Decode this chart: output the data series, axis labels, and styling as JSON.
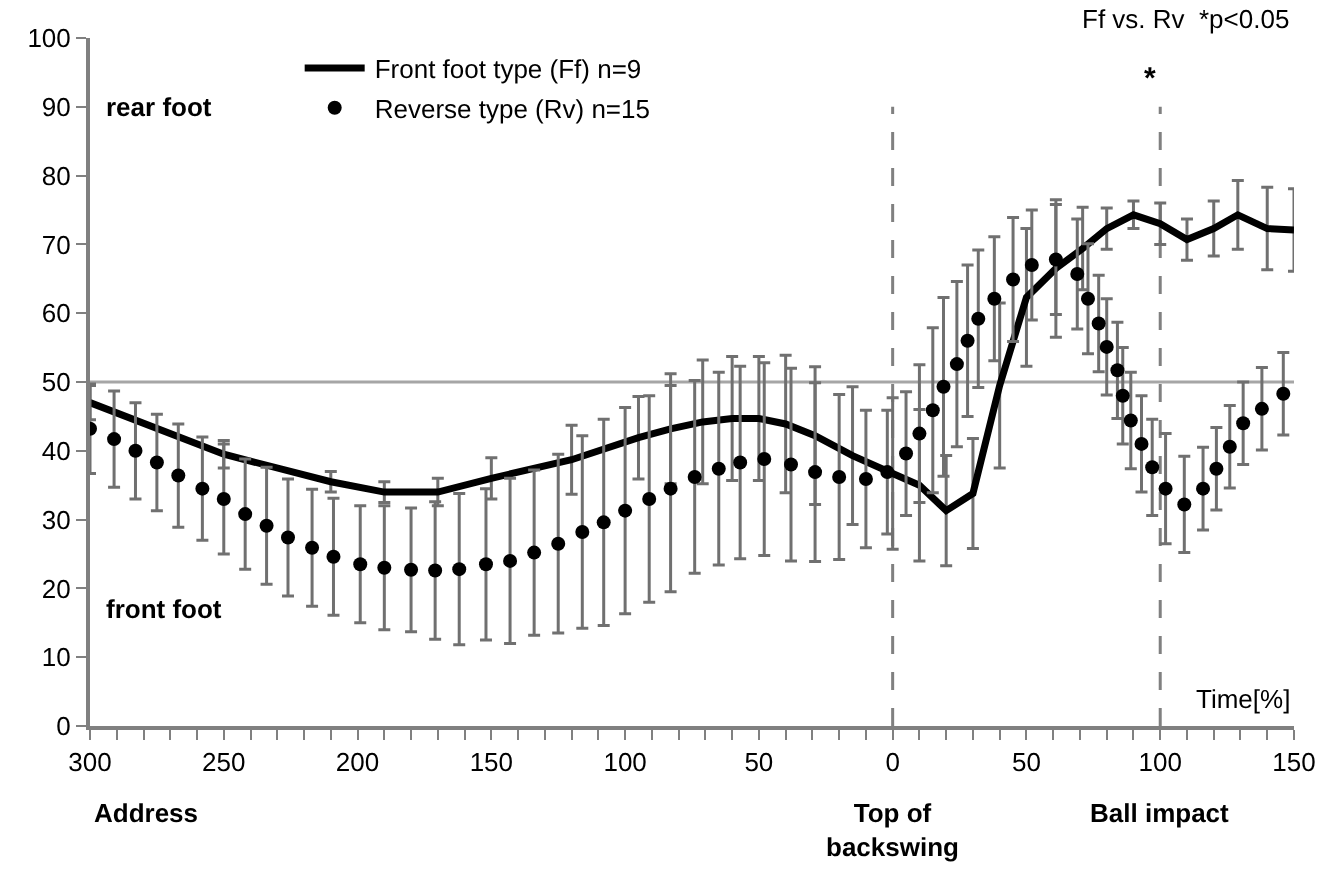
{
  "chart_data": {
    "type": "line",
    "xlim": [
      -300,
      150
    ],
    "ylim": [
      0,
      100
    ],
    "xticks": [
      {
        "value": -300,
        "label": "300"
      },
      {
        "value": -250,
        "label": "250"
      },
      {
        "value": -200,
        "label": "200"
      },
      {
        "value": -150,
        "label": "150"
      },
      {
        "value": -100,
        "label": "100"
      },
      {
        "value": -50,
        "label": "50"
      },
      0,
      50,
      100,
      150
    ],
    "yticks": [
      0,
      10,
      20,
      30,
      40,
      50,
      60,
      70,
      80,
      90,
      100
    ],
    "grid": false,
    "legend": "top left",
    "series": [
      {
        "name": "Front foot type (Ff) n=9",
        "color": "#000000",
        "marker": "none",
        "line_style": "solid",
        "x": [
          -300,
          -250,
          -210,
          -190,
          -170,
          -150,
          -120,
          -95,
          -83,
          -71,
          -60,
          -50,
          -40,
          -29,
          -15,
          0,
          10,
          20,
          30,
          40,
          50,
          61,
          71,
          80,
          90,
          100,
          110,
          120,
          129,
          140,
          150
        ],
        "values": [
          47,
          39.5,
          35.5,
          34,
          34,
          36,
          38.7,
          41.9,
          43.2,
          44.2,
          44.7,
          44.7,
          43.9,
          42.2,
          39.3,
          36.7,
          35,
          31.3,
          33.8,
          49.5,
          62.3,
          66.5,
          69.4,
          72.3,
          74.3,
          73,
          70.7,
          72.3,
          74.3,
          72.3,
          72.1
        ],
        "errors": [
          2.5,
          2,
          1.5,
          1.5,
          2,
          3,
          5,
          6,
          8,
          9,
          9,
          9,
          10,
          10,
          10,
          11,
          11,
          8,
          8,
          12,
          10,
          10,
          6,
          3,
          2,
          3,
          3,
          4,
          5,
          6,
          6
        ]
      },
      {
        "name": "Reverse type (Rv) n=15",
        "color": "#000000",
        "type": "scatter",
        "marker": "circle",
        "x": [
          -300,
          -291,
          -283,
          -275,
          -267,
          -258,
          -250,
          -242,
          -234,
          -226,
          -217,
          -209,
          -199,
          -190,
          -180,
          -171,
          -162,
          -152,
          -143,
          -134,
          -125,
          -116,
          -108,
          -100,
          -91,
          -83,
          -74,
          -65,
          -57,
          -48,
          -38,
          -29,
          -20,
          -10,
          -2,
          5,
          10,
          15,
          19,
          24,
          28,
          32,
          38,
          45,
          52,
          61,
          69,
          73,
          77,
          80,
          84,
          86,
          89,
          93,
          97,
          102,
          109,
          116,
          121,
          126,
          131,
          138,
          146
        ],
        "values": [
          43.2,
          41.7,
          40,
          38.3,
          36.4,
          34.5,
          33,
          30.8,
          29.1,
          27.4,
          25.9,
          24.6,
          23.5,
          23,
          22.7,
          22.6,
          22.8,
          23.5,
          24,
          25.2,
          26.5,
          28.2,
          29.6,
          31.3,
          33,
          34.5,
          36.2,
          37.4,
          38.3,
          38.8,
          38,
          36.9,
          36.2,
          35.9,
          36.9,
          39.6,
          42.5,
          45.9,
          49.3,
          52.6,
          56,
          59.2,
          62.1,
          64.9,
          67,
          67.8,
          65.7,
          62.1,
          58.5,
          55.1,
          51.7,
          48,
          44.4,
          41,
          37.6,
          34.5,
          32.2,
          34.5,
          37.4,
          40.6,
          44,
          46.1,
          48.3
        ],
        "errors": [
          6.5,
          7,
          7,
          7,
          7.5,
          7.5,
          8,
          8,
          8.5,
          8.5,
          8.5,
          8.5,
          8.5,
          9,
          9,
          10,
          11,
          11,
          12,
          12,
          13,
          14,
          15,
          15,
          15,
          15,
          14,
          14,
          14,
          14,
          14,
          13,
          12,
          10,
          9,
          9,
          10,
          12,
          13,
          12,
          11,
          10,
          9,
          9,
          8,
          8,
          8,
          8,
          7,
          7,
          7,
          7,
          7,
          7,
          7,
          8,
          7,
          6,
          6,
          6,
          6,
          6,
          6
        ]
      }
    ],
    "ref_lines": [
      {
        "axis": "y",
        "value": 50,
        "color": "#a6a6a6",
        "line_style": "solid"
      },
      {
        "axis": "x",
        "value": 0,
        "color": "#808080",
        "line_style": "dashed"
      },
      {
        "axis": "x",
        "value": 100,
        "color": "#808080",
        "line_style": "dashed"
      }
    ],
    "annotations": [
      "rear foot",
      "front foot",
      "Ff vs. Rv  *p<0.05",
      "Time[%]",
      "*",
      "Address",
      "Top of backswing",
      "Ball impact"
    ]
  }
}
